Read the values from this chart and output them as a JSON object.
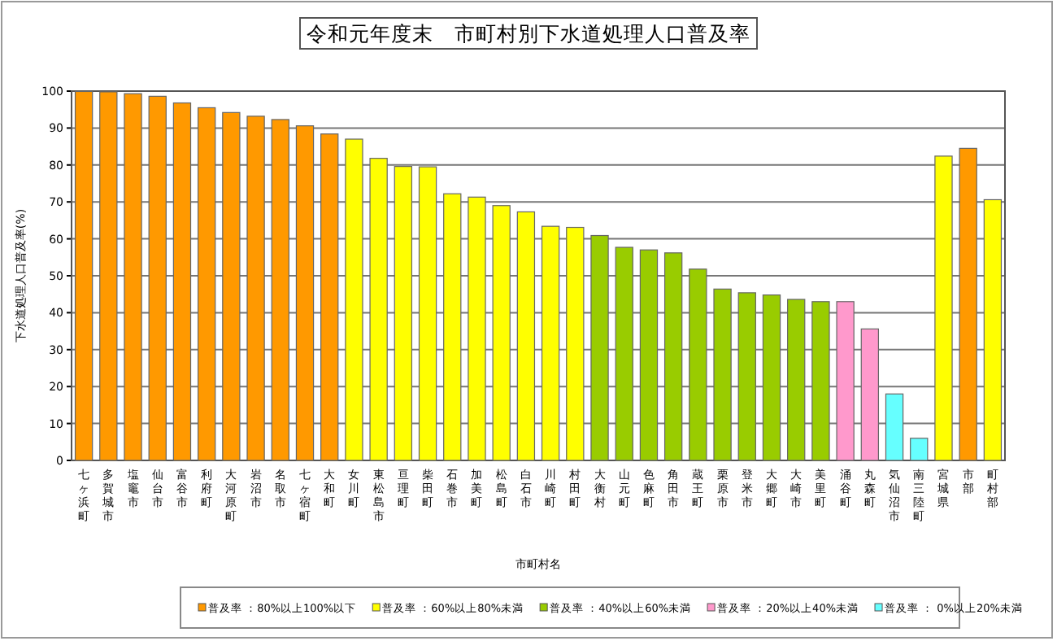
{
  "chart_data": {
    "type": "bar",
    "title": "令和元年度末　市町村別下水道処理人口普及率",
    "xlabel": "市町村名",
    "ylabel": "下水道処理人口普及率(%)",
    "categories": [
      "七ヶ浜町",
      "多賀城市",
      "塩竈市",
      "仙台市",
      "富谷市",
      "利府町",
      "大河原町",
      "岩沼市",
      "名取市",
      "七ヶ宿町",
      "大和町",
      "女川町",
      "東松島市",
      "亘理町",
      "柴田町",
      "石巻市",
      "加美町",
      "松島町",
      "白石市",
      "川崎町",
      "村田町",
      "大衡村",
      "山元町",
      "色麻町",
      "角田市",
      "蔵王町",
      "栗原市",
      "登米市",
      "大郷町",
      "大崎市",
      "美里町",
      "涌谷町",
      "丸森町",
      "気仙沼市",
      "南三陸町",
      "宮城県",
      "市部",
      "町村部"
    ],
    "series": [
      {
        "name": "普及率 ：80%以上100%以下",
        "color": "#ff9900",
        "values": [
          99.9,
          99.8,
          99.3,
          98.6,
          96.8,
          95.5,
          94.2,
          93.2,
          92.3,
          90.6,
          88.4,
          null,
          null,
          null,
          null,
          null,
          null,
          null,
          null,
          null,
          null,
          null,
          null,
          null,
          null,
          null,
          null,
          null,
          null,
          null,
          null,
          null,
          null,
          null,
          null,
          null,
          84.5,
          null
        ]
      },
      {
        "name": "普及率 ：60%以上80%未満",
        "color": "#ffff00",
        "values": [
          null,
          null,
          null,
          null,
          null,
          null,
          null,
          null,
          null,
          null,
          null,
          87.0,
          81.8,
          79.6,
          79.5,
          72.2,
          71.3,
          69.0,
          67.3,
          63.4,
          63.1,
          null,
          null,
          null,
          null,
          null,
          null,
          null,
          null,
          null,
          null,
          null,
          null,
          null,
          null,
          82.4,
          null,
          70.6
        ]
      },
      {
        "name": "普及率 ：40%以上60%未満",
        "color": "#99cc00",
        "values": [
          null,
          null,
          null,
          null,
          null,
          null,
          null,
          null,
          null,
          null,
          null,
          null,
          null,
          null,
          null,
          null,
          null,
          null,
          null,
          null,
          null,
          60.9,
          57.7,
          57.0,
          56.2,
          51.8,
          46.4,
          45.4,
          44.8,
          43.6,
          43.0,
          null,
          null,
          null,
          null,
          null,
          null,
          null
        ]
      },
      {
        "name": "普及率 ：20%以上40%未満",
        "color": "#ff99cc",
        "values": [
          null,
          null,
          null,
          null,
          null,
          null,
          null,
          null,
          null,
          null,
          null,
          null,
          null,
          null,
          null,
          null,
          null,
          null,
          null,
          null,
          null,
          null,
          null,
          null,
          null,
          null,
          null,
          null,
          null,
          null,
          null,
          43.0,
          35.6,
          null,
          null,
          null,
          null,
          null
        ]
      },
      {
        "name": "普及率 ： 0%以上20%未満",
        "color": "#66ffff",
        "values": [
          null,
          null,
          null,
          null,
          null,
          null,
          null,
          null,
          null,
          null,
          null,
          null,
          null,
          null,
          null,
          null,
          null,
          null,
          null,
          null,
          null,
          null,
          null,
          null,
          null,
          null,
          null,
          null,
          null,
          null,
          null,
          null,
          null,
          18.0,
          6.0,
          null,
          null,
          null
        ]
      }
    ],
    "ylim": [
      0,
      100
    ],
    "yticks": [
      0,
      10,
      20,
      30,
      40,
      50,
      60,
      70,
      80,
      90,
      100
    ],
    "grid": "y",
    "legend": "bottom"
  }
}
